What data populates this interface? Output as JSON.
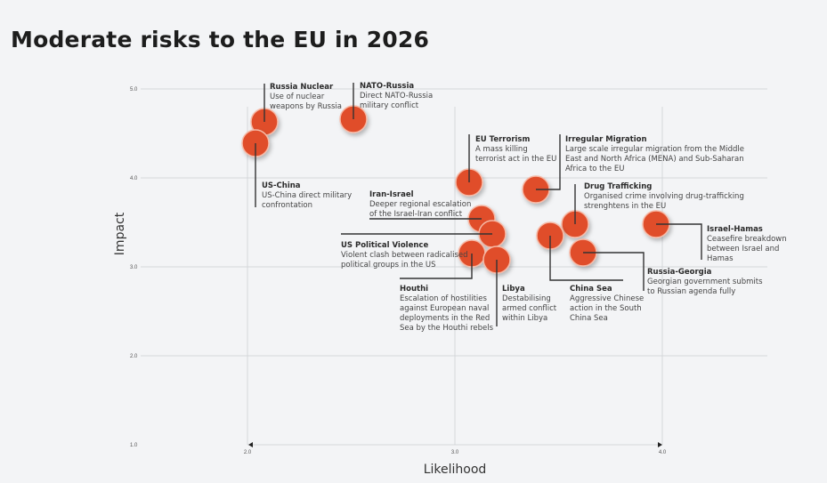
{
  "header": {
    "title": "Moderate risks to the EU in 2026"
  },
  "colors": {
    "bubble": "#e04e2a",
    "bubble_edge": "#f6b9a6",
    "grid": "#d5d7da",
    "leader": "#333333"
  },
  "chart_data": {
    "type": "scatter",
    "title": "Moderate risks to the EU in 2026",
    "xlabel": "Likelihood",
    "ylabel": "Impact",
    "xlim": [
      2.0,
      5.0
    ],
    "ylim": [
      1.0,
      5.0
    ],
    "x_ticks": [
      "2.0",
      "3.0",
      "4.0",
      "5.0"
    ],
    "y_ticks": [
      "1.0",
      "2.0",
      "3.0",
      "4.0",
      "5.0"
    ],
    "grid": true,
    "points": [
      {
        "name": "Russia Nuclear",
        "desc": [
          "Use of nuclear",
          "weapons by Russia"
        ],
        "x": 2.08,
        "y": 4.63
      },
      {
        "name": "US-China",
        "desc": [
          "US-China direct military",
          "confrontation"
        ],
        "x": 2.04,
        "y": 4.39
      },
      {
        "name": "NATO-Russia",
        "desc": [
          "Direct NATO-Russia",
          "military conflict"
        ],
        "x": 2.51,
        "y": 4.66
      },
      {
        "name": "EU Terrorism",
        "desc": [
          "A mass killing",
          "terrorist act in the EU"
        ],
        "x": 3.07,
        "y": 3.95
      },
      {
        "name": "Irregular Migration",
        "desc": [
          "Large scale irregular migration from the Middle",
          "East and North Africa (MENA) and Sub-Saharan",
          "Africa to the EU"
        ],
        "x": 3.39,
        "y": 3.87
      },
      {
        "name": "Drug Trafficking",
        "desc": [
          "Organised crime involving drug-trafficking",
          "strenghtens in the EU"
        ],
        "x": 3.58,
        "y": 3.48
      },
      {
        "name": "Iran-Israel",
        "desc": [
          "Deeper regional escalation",
          "of the Israel-Iran conflict"
        ],
        "x": 3.13,
        "y": 3.54
      },
      {
        "name": "US Political Violence",
        "desc": [
          "Violent clash between radicalised",
          "political groups in the US"
        ],
        "x": 3.18,
        "y": 3.37
      },
      {
        "name": "Houthi",
        "desc": [
          "Escalation of hostilities",
          "against European naval",
          "deployments in the Red",
          "Sea by the Houthi rebels"
        ],
        "x": 3.08,
        "y": 3.15
      },
      {
        "name": "Libya",
        "desc": [
          "Destabilising",
          "armed conflict",
          "within Libya"
        ],
        "x": 3.2,
        "y": 3.08
      },
      {
        "name": "China Sea",
        "desc": [
          "Aggressive Chinese",
          "action in the South",
          "China Sea"
        ],
        "x": 3.46,
        "y": 3.35
      },
      {
        "name": "Russia-Georgia",
        "desc": [
          "Georgian government submits",
          "to Russian agenda fully"
        ],
        "x": 3.62,
        "y": 3.16
      },
      {
        "name": "Israel-Hamas",
        "desc": [
          "Ceasefire breakdown",
          "between Israel and",
          "Hamas"
        ],
        "x": 3.97,
        "y": 3.48
      }
    ]
  }
}
